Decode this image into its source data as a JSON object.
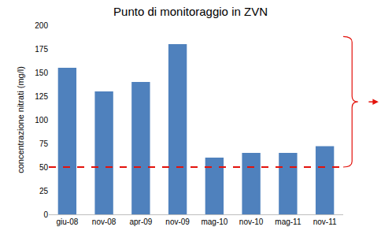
{
  "chart_data": {
    "type": "bar",
    "title": "Punto di monitoraggio in ZVN",
    "y_label": "concentrazione nitrati (mg/l)",
    "categories": [
      "giu-08",
      "nov-08",
      "apr-09",
      "nov-09",
      "mag-10",
      "nov-10",
      "mag-11",
      "nov-11"
    ],
    "values": [
      155,
      130,
      140,
      180,
      60,
      65,
      65,
      72
    ],
    "color": "#4f81bd",
    "ylim": [
      0,
      200
    ],
    "yticks": [
      0,
      25,
      50,
      75,
      100,
      125,
      150,
      175,
      200
    ],
    "grid": false,
    "threshold": {
      "value": 50,
      "color": "#e3120b",
      "line_style": "dash"
    }
  }
}
